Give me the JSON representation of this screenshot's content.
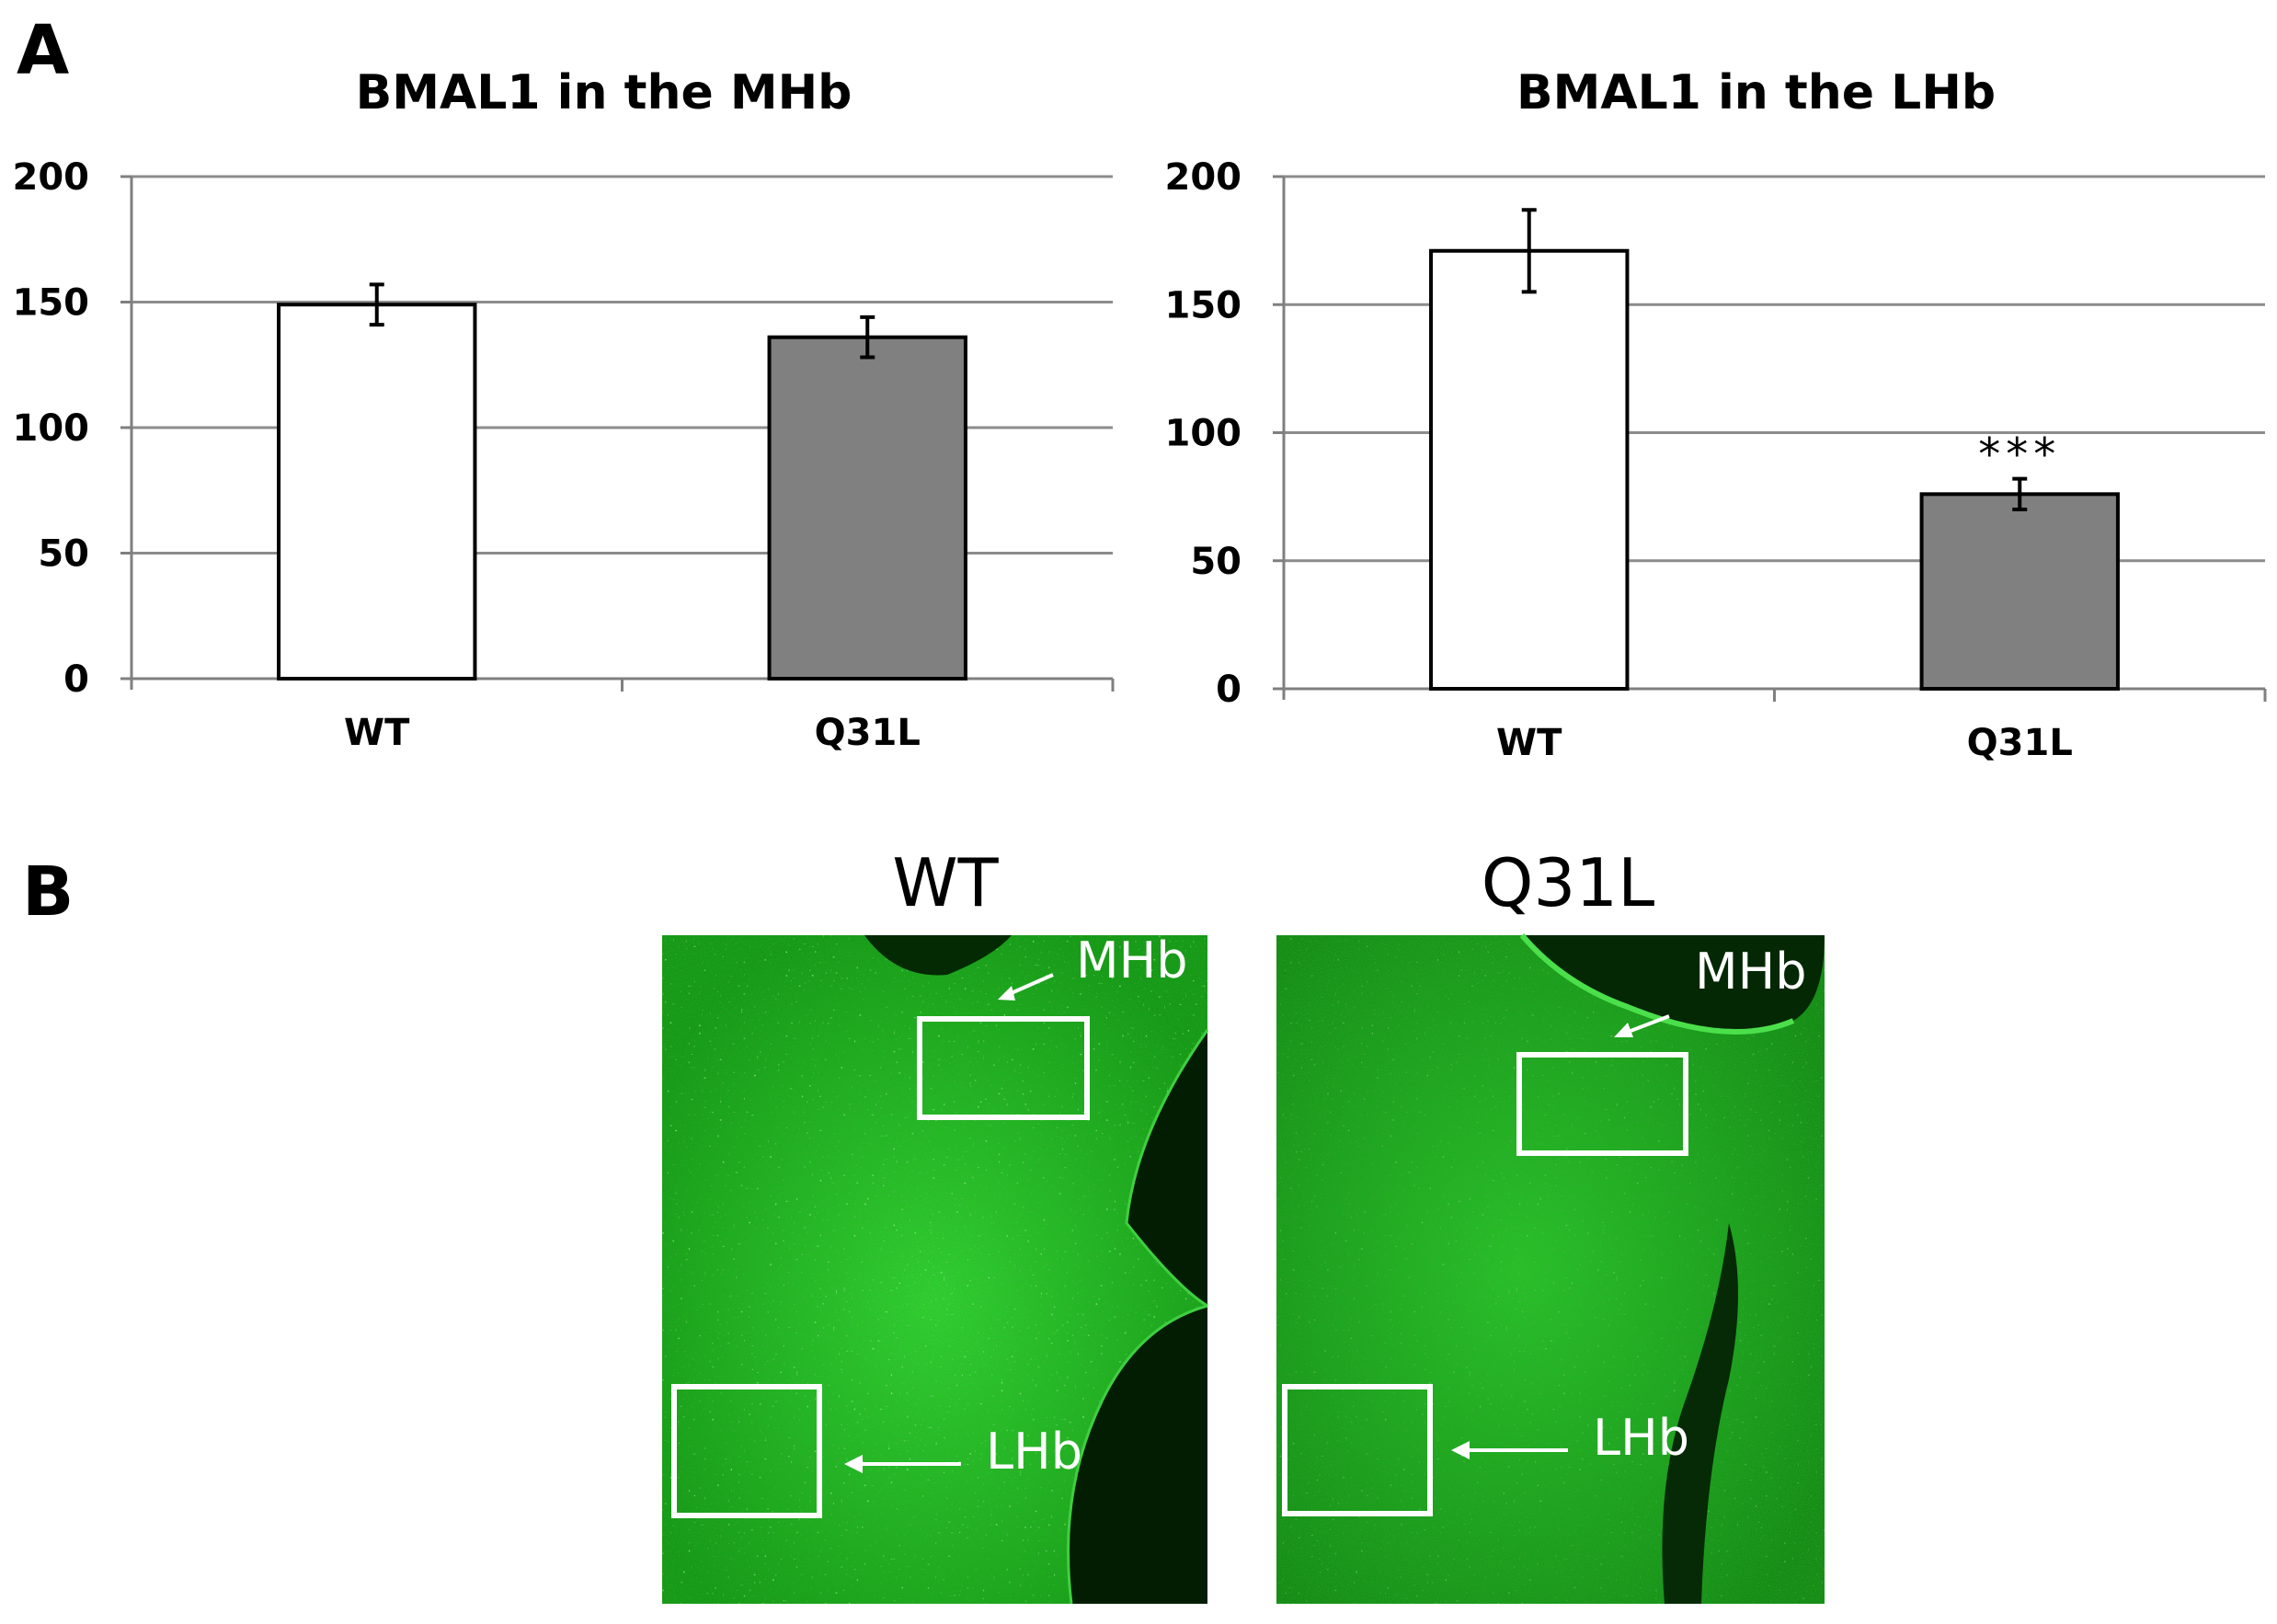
{
  "panel_a": {
    "label": "A"
  },
  "panel_b": {
    "label": "B",
    "images": [
      {
        "title": "WT",
        "annotations": [
          "MHb",
          "LHb"
        ]
      },
      {
        "title": "Q31L",
        "annotations": [
          "MHb",
          "LHb"
        ]
      }
    ]
  },
  "chart_data": [
    {
      "type": "bar",
      "title": "BMAL1 in the MHb",
      "categories": [
        "WT",
        "Q31L"
      ],
      "values": [
        149,
        136
      ],
      "errors": [
        8,
        8
      ],
      "annotations": [
        "",
        ""
      ],
      "bar_colors": [
        "#ffffff",
        "#808080"
      ],
      "ylim": [
        0,
        200
      ],
      "yticks": [
        "0",
        "50",
        "100",
        "150",
        "200"
      ],
      "xlabel": "",
      "ylabel": "",
      "grid": true
    },
    {
      "type": "bar",
      "title": "BMAL1 in the LHb",
      "categories": [
        "WT",
        "Q31L"
      ],
      "values": [
        171,
        76
      ],
      "errors": [
        16,
        6
      ],
      "annotations": [
        "",
        "***"
      ],
      "bar_colors": [
        "#ffffff",
        "#808080"
      ],
      "ylim": [
        0,
        200
      ],
      "yticks": [
        "0",
        "50",
        "100",
        "150",
        "200"
      ],
      "xlabel": "",
      "ylabel": "",
      "grid": true
    }
  ],
  "colors": {
    "axis": "#7f7f7f",
    "grid": "#8c8c8c",
    "fluorescence": "#1ec81e"
  }
}
